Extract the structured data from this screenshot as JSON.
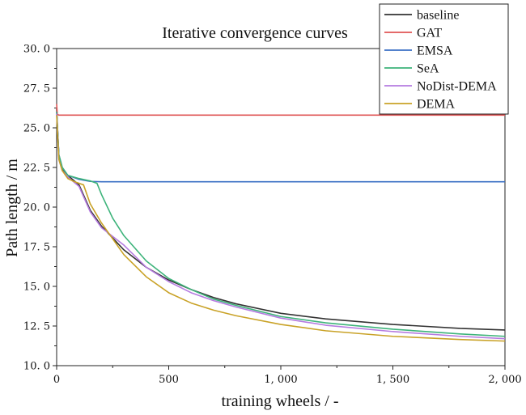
{
  "chart_data": {
    "type": "line",
    "title": "Iterative convergence curves",
    "xlabel": "training wheels / -",
    "ylabel": "Path length / m",
    "xlim": [
      0,
      2000
    ],
    "ylim": [
      10.0,
      30.0
    ],
    "x_ticks": [
      0,
      500,
      1000,
      1500,
      2000
    ],
    "x_tick_labels": [
      "0",
      "500",
      "1, 000",
      "1, 500",
      "2, 000"
    ],
    "y_ticks": [
      10.0,
      12.5,
      15.0,
      17.5,
      20.0,
      22.5,
      25.0,
      27.5,
      30.0
    ],
    "y_tick_labels": [
      "10. 0",
      "12. 5",
      "15. 0",
      "17. 5",
      "20. 0",
      "22. 5",
      "25. 0",
      "27. 5",
      "30. 0"
    ],
    "grid": false,
    "legend_position": "top-right",
    "series": [
      {
        "name": "baseline",
        "color": "#333333",
        "points": [
          [
            0,
            26.2
          ],
          [
            10,
            23.2
          ],
          [
            25,
            22.4
          ],
          [
            50,
            22.0
          ],
          [
            100,
            21.4
          ],
          [
            150,
            19.8
          ],
          [
            200,
            18.8
          ],
          [
            300,
            17.3
          ],
          [
            400,
            16.2
          ],
          [
            500,
            15.4
          ],
          [
            600,
            14.8
          ],
          [
            700,
            14.3
          ],
          [
            800,
            13.9
          ],
          [
            1000,
            13.3
          ],
          [
            1200,
            12.95
          ],
          [
            1500,
            12.6
          ],
          [
            1800,
            12.35
          ],
          [
            2000,
            12.25
          ]
        ]
      },
      {
        "name": "GAT",
        "color": "#e05555",
        "points": [
          [
            0,
            26.5
          ],
          [
            3,
            25.85
          ],
          [
            10,
            25.8
          ],
          [
            500,
            25.8
          ],
          [
            1000,
            25.8
          ],
          [
            1500,
            25.8
          ],
          [
            2000,
            25.8
          ]
        ]
      },
      {
        "name": "EMSA",
        "color": "#3a6fc4",
        "points": [
          [
            0,
            26.0
          ],
          [
            10,
            23.3
          ],
          [
            25,
            22.5
          ],
          [
            50,
            22.0
          ],
          [
            100,
            21.75
          ],
          [
            150,
            21.62
          ],
          [
            200,
            21.6
          ],
          [
            500,
            21.6
          ],
          [
            1000,
            21.6
          ],
          [
            1500,
            21.6
          ],
          [
            2000,
            21.6
          ]
        ]
      },
      {
        "name": "SeA",
        "color": "#3db37a",
        "points": [
          [
            0,
            26.0
          ],
          [
            10,
            23.3
          ],
          [
            25,
            22.5
          ],
          [
            50,
            22.0
          ],
          [
            100,
            21.8
          ],
          [
            150,
            21.65
          ],
          [
            180,
            21.5
          ],
          [
            200,
            20.8
          ],
          [
            250,
            19.3
          ],
          [
            300,
            18.2
          ],
          [
            400,
            16.6
          ],
          [
            500,
            15.5
          ],
          [
            600,
            14.8
          ],
          [
            700,
            14.2
          ],
          [
            800,
            13.8
          ],
          [
            1000,
            13.1
          ],
          [
            1200,
            12.7
          ],
          [
            1500,
            12.3
          ],
          [
            1800,
            12.0
          ],
          [
            2000,
            11.85
          ]
        ]
      },
      {
        "name": "NoDist-DEMA",
        "color": "#b57be0",
        "points": [
          [
            0,
            25.9
          ],
          [
            10,
            23.0
          ],
          [
            25,
            22.3
          ],
          [
            50,
            21.9
          ],
          [
            100,
            21.3
          ],
          [
            150,
            19.7
          ],
          [
            200,
            18.7
          ],
          [
            300,
            17.6
          ],
          [
            400,
            16.2
          ],
          [
            500,
            15.3
          ],
          [
            600,
            14.6
          ],
          [
            700,
            14.1
          ],
          [
            800,
            13.7
          ],
          [
            1000,
            13.0
          ],
          [
            1200,
            12.55
          ],
          [
            1500,
            12.15
          ],
          [
            1800,
            11.85
          ],
          [
            2000,
            11.7
          ]
        ]
      },
      {
        "name": "DEMA",
        "color": "#c9a227",
        "points": [
          [
            0,
            25.8
          ],
          [
            10,
            23.0
          ],
          [
            25,
            22.3
          ],
          [
            50,
            21.8
          ],
          [
            80,
            21.6
          ],
          [
            120,
            21.4
          ],
          [
            150,
            20.2
          ],
          [
            200,
            19.0
          ],
          [
            300,
            17.0
          ],
          [
            400,
            15.6
          ],
          [
            500,
            14.6
          ],
          [
            600,
            13.95
          ],
          [
            700,
            13.5
          ],
          [
            800,
            13.15
          ],
          [
            1000,
            12.6
          ],
          [
            1200,
            12.2
          ],
          [
            1500,
            11.85
          ],
          [
            1800,
            11.65
          ],
          [
            2000,
            11.55
          ]
        ]
      }
    ]
  }
}
